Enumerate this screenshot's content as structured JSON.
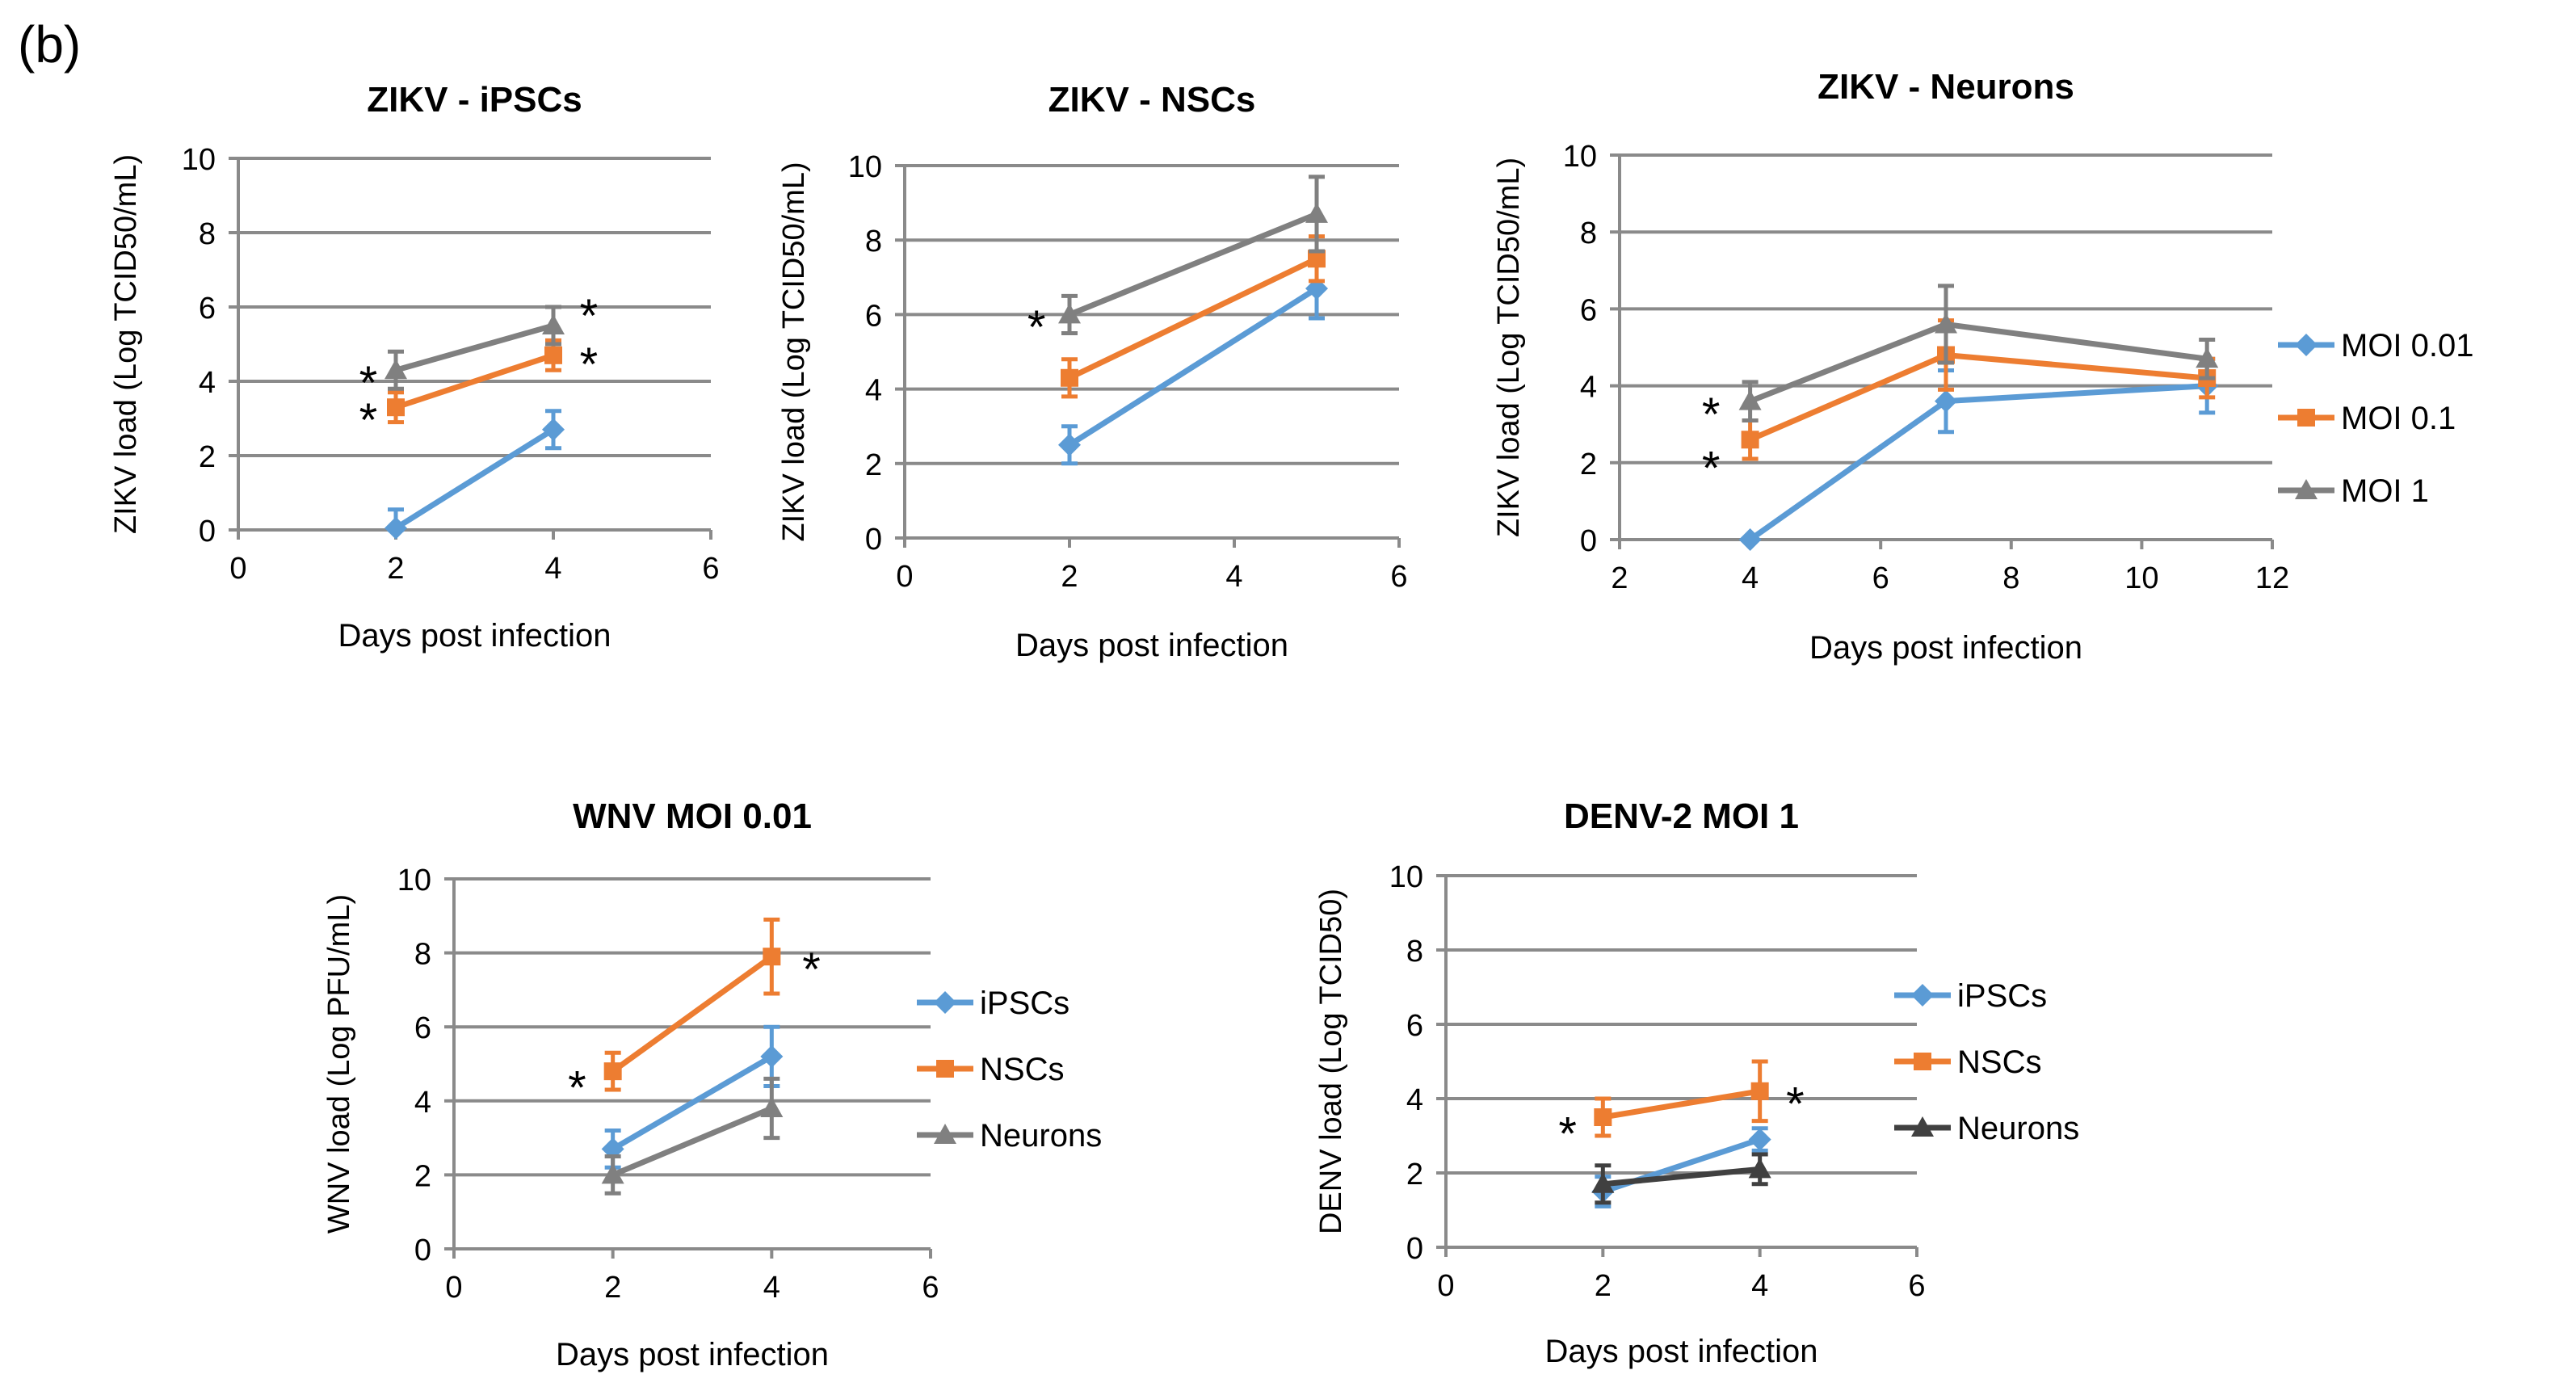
{
  "figure": {
    "panel_label": "(b)"
  },
  "chart_data": [
    {
      "type": "line",
      "title": "ZIKV - iPSCs",
      "xlabel": "Days post infection",
      "ylabel": "ZIKV load (Log TCID50/mL)",
      "xlim": [
        0,
        6
      ],
      "xticks": [
        0,
        2,
        4,
        6
      ],
      "ylim": [
        0,
        10
      ],
      "yticks": [
        0,
        2,
        4,
        6,
        8,
        10
      ],
      "grid": true,
      "series": [
        {
          "name": "MOI 0.01",
          "color": "#5b9bd5",
          "marker": "diamond",
          "x": [
            2,
            4
          ],
          "y": [
            0.05,
            2.7
          ],
          "err": [
            0.5,
            0.5
          ]
        },
        {
          "name": "MOI 0.1",
          "color": "#ed7d31",
          "marker": "square",
          "x": [
            2,
            4
          ],
          "y": [
            3.3,
            4.7
          ],
          "err": [
            0.4,
            0.4
          ]
        },
        {
          "name": "MOI 1",
          "color": "#808080",
          "marker": "triangle",
          "x": [
            2,
            4
          ],
          "y": [
            4.3,
            5.5
          ],
          "err": [
            0.5,
            0.5
          ]
        }
      ],
      "annotations": [
        {
          "text": "*",
          "x": 1.65,
          "y": 4.0
        },
        {
          "text": "*",
          "x": 1.65,
          "y": 3.0
        },
        {
          "text": "*",
          "x": 4.45,
          "y": 5.8
        },
        {
          "text": "*",
          "x": 4.45,
          "y": 4.5
        }
      ]
    },
    {
      "type": "line",
      "title": "ZIKV - NSCs",
      "xlabel": "Days post infection",
      "ylabel": "ZIKV load (Log TCID50/mL)",
      "xlim": [
        0,
        6
      ],
      "xticks": [
        0,
        2,
        4,
        6
      ],
      "ylim": [
        0,
        10
      ],
      "yticks": [
        0,
        2,
        4,
        6,
        8,
        10
      ],
      "grid": true,
      "series": [
        {
          "name": "MOI 0.01",
          "color": "#5b9bd5",
          "marker": "diamond",
          "x": [
            2,
            5
          ],
          "y": [
            2.5,
            6.7
          ],
          "err": [
            0.5,
            0.8
          ]
        },
        {
          "name": "MOI 0.1",
          "color": "#ed7d31",
          "marker": "square",
          "x": [
            2,
            5
          ],
          "y": [
            4.3,
            7.5
          ],
          "err": [
            0.5,
            0.6
          ]
        },
        {
          "name": "MOI 1",
          "color": "#808080",
          "marker": "triangle",
          "x": [
            2,
            5
          ],
          "y": [
            6.0,
            8.7
          ],
          "err": [
            0.5,
            1.0
          ]
        }
      ],
      "annotations": [
        {
          "text": "*",
          "x": 1.6,
          "y": 5.7
        }
      ]
    },
    {
      "type": "line",
      "title": "ZIKV - Neurons",
      "xlabel": "Days post infection",
      "ylabel": "ZIKV load (Log TCID50/mL)",
      "xlim": [
        2,
        12
      ],
      "xticks": [
        2,
        4,
        6,
        8,
        10,
        12
      ],
      "ylim": [
        0,
        10
      ],
      "yticks": [
        0,
        2,
        4,
        6,
        8,
        10
      ],
      "grid": true,
      "legend": "right",
      "series": [
        {
          "name": "MOI 0.01",
          "color": "#5b9bd5",
          "marker": "diamond",
          "x": [
            4,
            7,
            11
          ],
          "y": [
            0.0,
            3.6,
            4.0
          ],
          "err": [
            0,
            0.8,
            0.7
          ]
        },
        {
          "name": "MOI 0.1",
          "color": "#ed7d31",
          "marker": "square",
          "x": [
            4,
            7,
            11
          ],
          "y": [
            2.6,
            4.8,
            4.2
          ],
          "err": [
            0.5,
            0.9,
            0.5
          ]
        },
        {
          "name": "MOI 1",
          "color": "#808080",
          "marker": "triangle",
          "x": [
            4,
            7,
            11
          ],
          "y": [
            3.6,
            5.6,
            4.7
          ],
          "err": [
            0.5,
            1.0,
            0.5
          ]
        }
      ],
      "annotations": [
        {
          "text": "*",
          "x": 3.4,
          "y": 3.3
        },
        {
          "text": "*",
          "x": 3.4,
          "y": 1.9
        }
      ]
    },
    {
      "type": "line",
      "title": "WNV MOI 0.01",
      "xlabel": "Days post infection",
      "ylabel": "WNV load (Log PFU/mL)",
      "xlim": [
        0,
        6
      ],
      "xticks": [
        0,
        2,
        4,
        6
      ],
      "ylim": [
        0,
        10
      ],
      "yticks": [
        0,
        2,
        4,
        6,
        8,
        10
      ],
      "grid": true,
      "legend": "right",
      "series": [
        {
          "name": "iPSCs",
          "color": "#5b9bd5",
          "marker": "diamond",
          "x": [
            2,
            4
          ],
          "y": [
            2.7,
            5.2
          ],
          "err": [
            0.5,
            0.8
          ]
        },
        {
          "name": "NSCs",
          "color": "#ed7d31",
          "marker": "square",
          "x": [
            2,
            4
          ],
          "y": [
            4.8,
            7.9
          ],
          "err": [
            0.5,
            1.0
          ]
        },
        {
          "name": "Neurons",
          "color": "#808080",
          "marker": "triangle",
          "x": [
            2,
            4
          ],
          "y": [
            2.0,
            3.8
          ],
          "err": [
            0.5,
            0.8
          ]
        }
      ],
      "annotations": [
        {
          "text": "*",
          "x": 1.55,
          "y": 4.4
        },
        {
          "text": "*",
          "x": 4.5,
          "y": 7.6
        }
      ]
    },
    {
      "type": "line",
      "title": "DENV-2 MOI 1",
      "xlabel": "Days post infection",
      "ylabel": "DENV load (Log TCID50)",
      "xlim": [
        0,
        6
      ],
      "xticks": [
        0,
        2,
        4,
        6
      ],
      "ylim": [
        0,
        10
      ],
      "yticks": [
        0,
        2,
        4,
        6,
        8,
        10
      ],
      "grid": true,
      "legend": "right",
      "series": [
        {
          "name": "iPSCs",
          "color": "#5b9bd5",
          "marker": "diamond",
          "x": [
            2,
            4
          ],
          "y": [
            1.5,
            2.9
          ],
          "err": [
            0.4,
            0.3
          ]
        },
        {
          "name": "NSCs",
          "color": "#ed7d31",
          "marker": "square",
          "x": [
            2,
            4
          ],
          "y": [
            3.5,
            4.2
          ],
          "err": [
            0.5,
            0.8
          ]
        },
        {
          "name": "Neurons",
          "color": "#404040",
          "marker": "triangle",
          "x": [
            2,
            4
          ],
          "y": [
            1.7,
            2.1
          ],
          "err": [
            0.5,
            0.4
          ]
        }
      ],
      "annotations": [
        {
          "text": "*",
          "x": 1.55,
          "y": 3.1
        },
        {
          "text": "*",
          "x": 4.45,
          "y": 3.9
        }
      ]
    }
  ]
}
